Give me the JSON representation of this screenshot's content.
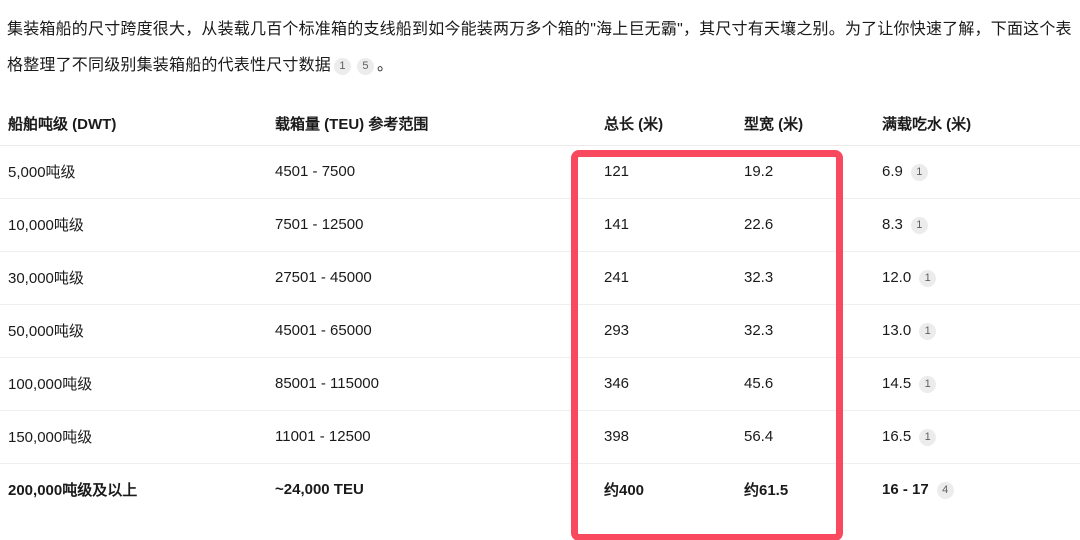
{
  "intro": {
    "text_before_citations": "集装箱船的尺寸跨度很大，从装载几百个标准箱的支线船到如今能装两万多个箱的\"海上巨无霸\"，其尺寸有天壤之别。为了让你快速了解，下面这个表格整理了不同级别集装箱船的代表性尺寸数据",
    "citations": [
      "1",
      "5"
    ],
    "text_after_citations": "。"
  },
  "table": {
    "headers": [
      "船舶吨级 (DWT)",
      "载箱量 (TEU) 参考范围",
      "总长 (米)",
      "型宽 (米)",
      "满载吃水 (米)"
    ],
    "rows": [
      {
        "dwt": "5,000吨级",
        "teu": "4501 - 7500",
        "length": "121",
        "beam": "19.2",
        "draft": "6.9",
        "draft_cite": "1",
        "bold": false
      },
      {
        "dwt": "10,000吨级",
        "teu": "7501 - 12500",
        "length": "141",
        "beam": "22.6",
        "draft": "8.3",
        "draft_cite": "1",
        "bold": false
      },
      {
        "dwt": "30,000吨级",
        "teu": "27501 - 45000",
        "length": "241",
        "beam": "32.3",
        "draft": "12.0",
        "draft_cite": "1",
        "bold": false
      },
      {
        "dwt": "50,000吨级",
        "teu": "45001 - 65000",
        "length": "293",
        "beam": "32.3",
        "draft": "13.0",
        "draft_cite": "1",
        "bold": false
      },
      {
        "dwt": "100,000吨级",
        "teu": "85001 - 115000",
        "length": "346",
        "beam": "45.6",
        "draft": "14.5",
        "draft_cite": "1",
        "bold": false
      },
      {
        "dwt": "150,000吨级",
        "teu": "11001 - 12500",
        "length": "398",
        "beam": "56.4",
        "draft": "16.5",
        "draft_cite": "1",
        "bold": false
      },
      {
        "dwt": "200,000吨级及以上",
        "teu": "~24,000 TEU",
        "length": "约400",
        "beam": "约61.5",
        "draft": "16 - 17",
        "draft_cite": "4",
        "bold": true
      }
    ]
  },
  "highlight": {
    "color": "#f8495e",
    "highlighted_columns": [
      "总长 (米)",
      "型宽 (米)"
    ]
  }
}
